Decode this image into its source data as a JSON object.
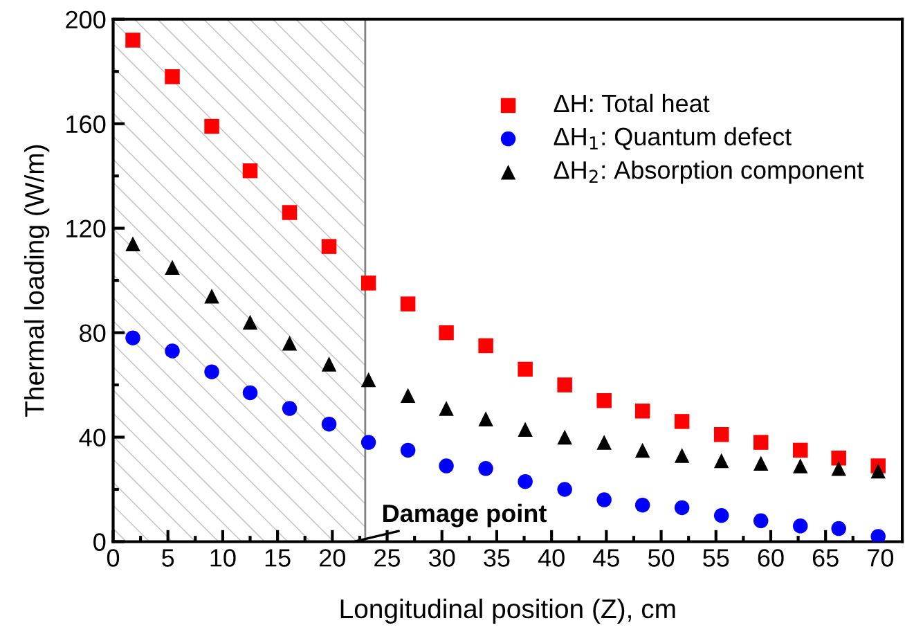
{
  "chart_data": {
    "type": "scatter",
    "xlabel": "Longitudinal position (Z), cm",
    "ylabel": "Thermal loading (W/m)",
    "x": [
      1.8,
      5.4,
      9.0,
      12.5,
      16.1,
      19.7,
      23.3,
      26.9,
      30.4,
      34.0,
      37.6,
      41.2,
      44.8,
      48.3,
      51.9,
      55.5,
      59.1,
      62.7,
      66.2,
      69.8
    ],
    "series": [
      {
        "name": "ΔH: Total heat",
        "color": "#ff0000",
        "marker": "square",
        "values": [
          192,
          178,
          159,
          142,
          126,
          113,
          99,
          91,
          80,
          75,
          66,
          60,
          54,
          50,
          46,
          41,
          38,
          35,
          32,
          29
        ]
      },
      {
        "name": "ΔH$_{1}$: Quantum defect",
        "color": "#0000ff",
        "marker": "circle",
        "values": [
          78,
          73,
          65,
          57,
          51,
          45,
          38,
          35,
          29,
          28,
          23,
          20,
          16,
          14,
          13,
          10,
          8,
          6,
          5,
          2
        ]
      },
      {
        "name": "ΔH$_{2}$: Absorption component",
        "color": "#000000",
        "marker": "triangle",
        "values": [
          114,
          105,
          94,
          84,
          76,
          68,
          62,
          56,
          51,
          47,
          43,
          40,
          38,
          35,
          33,
          31,
          30,
          29,
          28,
          27
        ]
      }
    ],
    "xlim": [
      0,
      72
    ],
    "xticks": [
      0,
      5,
      10,
      15,
      20,
      25,
      30,
      35,
      40,
      45,
      50,
      55,
      60,
      65,
      70
    ],
    "ylim": [
      0,
      200
    ],
    "yticks": [
      0,
      40,
      80,
      120,
      160,
      200
    ],
    "bands": [
      {
        "axis": "x",
        "from": 0,
        "to": 23,
        "color": "#c8c8c8"
      }
    ],
    "ref_lines": [
      {
        "axis": "x",
        "value": 23,
        "color": "#808080",
        "line_style": "solid"
      }
    ],
    "annotations": [
      {
        "text": "Damage point",
        "x": 22,
        "y": 0
      }
    ],
    "legend": "top right",
    "grid": false
  }
}
